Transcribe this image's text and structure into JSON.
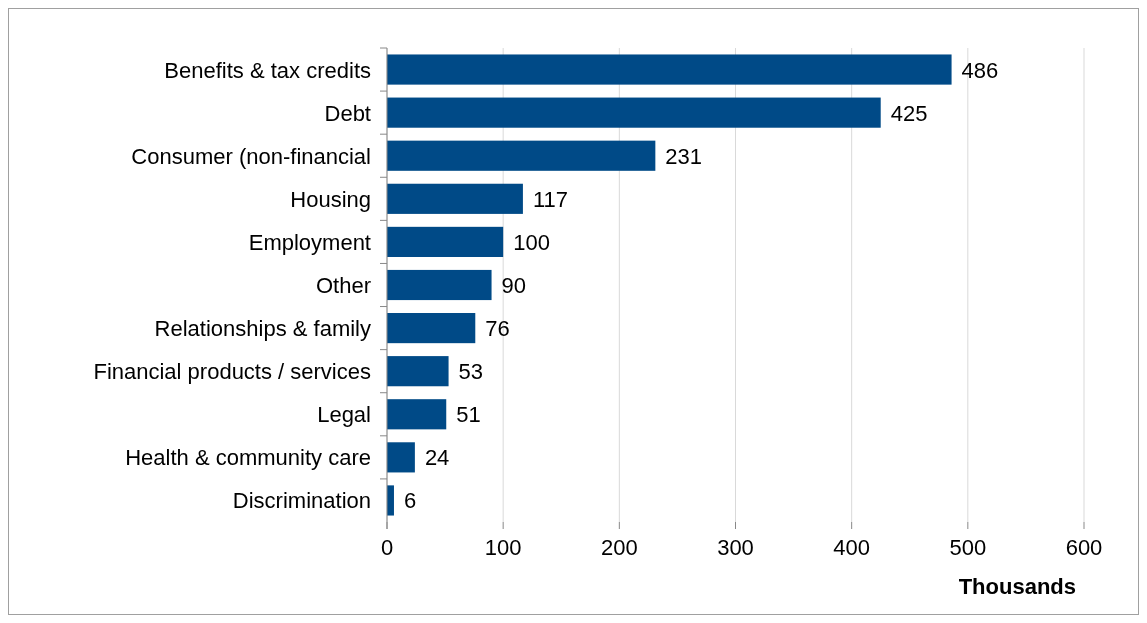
{
  "chart_data": {
    "type": "bar",
    "orientation": "horizontal",
    "xlabel": "Thousands",
    "categories": [
      "Benefits & tax credits",
      "Debt",
      "Consumer (non-financial",
      "Housing",
      "Employment",
      "Other",
      "Relationships & family",
      "Financial products / services",
      "Legal",
      "Health & community care",
      "Discrimination"
    ],
    "values": [
      486,
      425,
      231,
      117,
      100,
      90,
      76,
      53,
      51,
      24,
      6
    ],
    "color": "#004a87",
    "xlim": [
      0,
      600
    ],
    "xticks": [
      0,
      100,
      200,
      300,
      400,
      500,
      600
    ],
    "grid": "x",
    "data_labels": true
  }
}
